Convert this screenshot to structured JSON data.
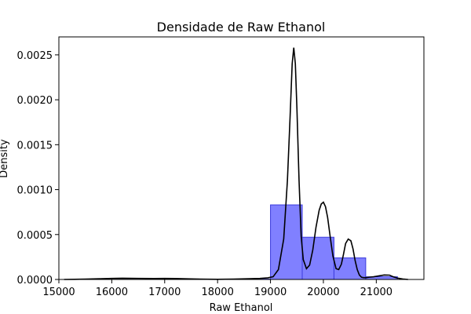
{
  "chart_data": {
    "type": "bar",
    "title": "Densidade de Raw Ethanol",
    "xlabel": "Raw Ethanol",
    "ylabel": "Density",
    "xlim": [
      15000,
      21900
    ],
    "ylim": [
      0,
      0.0027
    ],
    "xticks": [
      15000,
      16000,
      17000,
      18000,
      19000,
      20000,
      21000
    ],
    "xtick_labels": [
      "15000",
      "16000",
      "17000",
      "18000",
      "19000",
      "20000",
      "21000"
    ],
    "yticks": [
      0,
      0.0005,
      0.001,
      0.0015,
      0.002,
      0.0025
    ],
    "ytick_labels": [
      "0.0000",
      "0.0005",
      "0.0010",
      "0.0015",
      "0.0020",
      "0.0025"
    ],
    "grid": false,
    "colors": {
      "bars_fill": "#8080ff",
      "bars_edge": "#3b3bdc",
      "kde_line": "#000000"
    },
    "histogram": {
      "bins": [
        {
          "x0": 15100,
          "x1": 15700,
          "density": 4e-07
        },
        {
          "x0": 15700,
          "x1": 16300,
          "density": 1e-06
        },
        {
          "x0": 16300,
          "x1": 16900,
          "density": 8e-07
        },
        {
          "x0": 16900,
          "x1": 17500,
          "density": 5e-07
        },
        {
          "x0": 17500,
          "x1": 18100,
          "density": 3e-07
        },
        {
          "x0": 18100,
          "x1": 18700,
          "density": 6e-07
        },
        {
          "x0": 18700,
          "x1": 19000,
          "density": 4e-06
        },
        {
          "x0": 19000,
          "x1": 19600,
          "density": 0.00083
        },
        {
          "x0": 19600,
          "x1": 20200,
          "density": 0.00047
        },
        {
          "x0": 20200,
          "x1": 20800,
          "density": 0.00024
        },
        {
          "x0": 20800,
          "x1": 21400,
          "density": 3e-05
        }
      ]
    },
    "kde": {
      "x": [
        15100,
        15300,
        15500,
        15800,
        16000,
        16200,
        16500,
        16800,
        17000,
        17200,
        17500,
        17800,
        18000,
        18300,
        18600,
        18800,
        18950,
        19050,
        19150,
        19250,
        19320,
        19370,
        19410,
        19440,
        19470,
        19500,
        19540,
        19580,
        19620,
        19680,
        19740,
        19800,
        19860,
        19920,
        19960,
        20000,
        20040,
        20080,
        20130,
        20180,
        20240,
        20290,
        20340,
        20380,
        20420,
        20470,
        20520,
        20560,
        20600,
        20640,
        20680,
        20720,
        20760,
        20810,
        20870,
        20950,
        21050,
        21150,
        21250,
        21320,
        21400,
        21500,
        21600
      ],
      "y": [
        0.0,
        2e-06,
        4e-06,
        8e-06,
        1.2e-05,
        1.4e-05,
        1.2e-05,
        1e-05,
        1.2e-05,
        1e-05,
        6e-06,
        3e-06,
        2e-06,
        4e-06,
        8e-06,
        1.2e-05,
        1.8e-05,
        3e-05,
        0.00011,
        0.00045,
        0.0011,
        0.0018,
        0.0024,
        0.00258,
        0.0024,
        0.0019,
        0.0011,
        0.00048,
        0.00022,
        0.00012,
        0.00016,
        0.00033,
        0.00058,
        0.00077,
        0.00084,
        0.00086,
        0.00081,
        0.00069,
        0.00047,
        0.00026,
        0.00012,
        0.00011,
        0.00017,
        0.00028,
        0.0004,
        0.00045,
        0.00043,
        0.00034,
        0.00021,
        0.00011,
        5e-05,
        2.5e-05,
        2e-05,
        2e-05,
        2.5e-05,
        3e-05,
        4e-05,
        5e-05,
        4.8e-05,
        3e-05,
        1.5e-05,
        5e-06,
        0.0
      ]
    }
  }
}
